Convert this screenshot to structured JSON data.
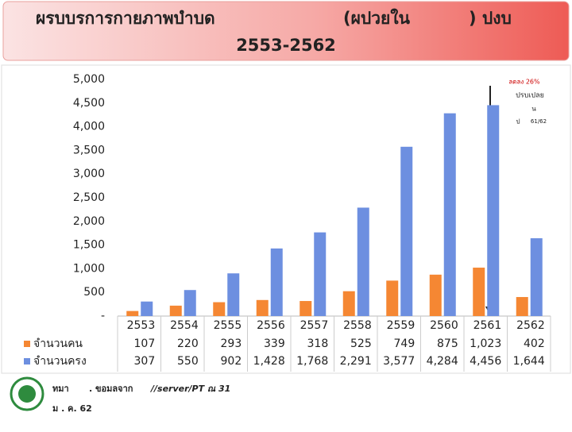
{
  "chart_data": {
    "type": "bar",
    "title_parts": [
      "ผรบบรการกายภาพบำบด",
      "(ผปวยใน",
      ") ปงบ",
      "2553-2562"
    ],
    "categories": [
      "2553",
      "2554",
      "2555",
      "2556",
      "2557",
      "2558",
      "2559",
      "2560",
      "2561",
      "2562"
    ],
    "series": [
      {
        "name": "จำนวนคน",
        "color": "#f58733",
        "values": [
          107,
          220,
          293,
          339,
          318,
          525,
          749,
          875,
          1023,
          402
        ],
        "value_labels": [
          "107",
          "220",
          "293",
          "339",
          "318",
          "525",
          "749",
          "875",
          "1,023",
          "402"
        ]
      },
      {
        "name": "จำนวนครง",
        "color": "#6d8fe0",
        "values": [
          307,
          550,
          902,
          1428,
          1768,
          2291,
          3577,
          4284,
          4456,
          1644
        ],
        "value_labels": [
          "307",
          "550",
          "902",
          "1,428",
          "1,768",
          "2,291",
          "3,577",
          "4,284",
          "4,456",
          "1,644"
        ]
      }
    ],
    "ylim": [
      0,
      5000
    ],
    "yticks": [
      {
        "value": 0,
        "label": "-"
      },
      500,
      {
        "value": 1000,
        "label": "1,000"
      },
      {
        "value": 1500,
        "label": "1,500"
      },
      {
        "value": 2000,
        "label": "2,000"
      },
      {
        "value": 2500,
        "label": "2,500"
      },
      {
        "value": 3000,
        "label": "3,000"
      },
      {
        "value": 3500,
        "label": "3,500"
      },
      {
        "value": 4000,
        "label": "4,000"
      },
      {
        "value": 4500,
        "label": "4,500"
      },
      {
        "value": 5000,
        "label": "5,000"
      }
    ],
    "annotations": [
      "ลดลง 26%",
      "ปรบเปลย",
      "น",
      "ป",
      "61/62"
    ]
  },
  "footer": {
    "source": [
      "ทมา",
      ". ขอมลจาก",
      "//server/PT ณ 31",
      "ม . ค. 62"
    ]
  }
}
